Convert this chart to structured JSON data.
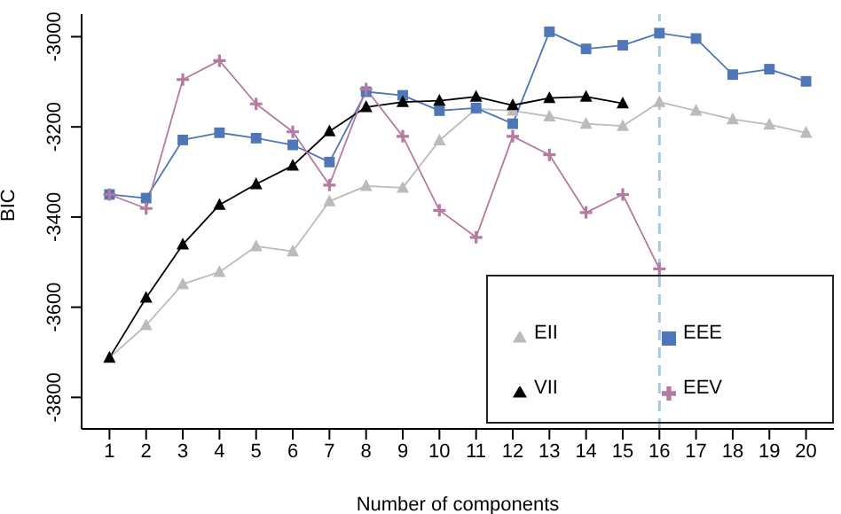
{
  "chart_data": {
    "type": "line",
    "xlabel": "Number of components",
    "ylabel": "BIC",
    "x": [
      1,
      2,
      3,
      4,
      5,
      6,
      7,
      8,
      9,
      10,
      11,
      12,
      13,
      14,
      15,
      16,
      17,
      18,
      19,
      20
    ],
    "series": [
      {
        "name": "EII",
        "color": "#bbbbbb",
        "marker": "triangle",
        "values": [
          -3712,
          -3640,
          -3549,
          -3522,
          -3465,
          -3476,
          -3365,
          -3331,
          -3335,
          -3230,
          -3160,
          -3164,
          -3177,
          -3193,
          -3198,
          -3145,
          -3164,
          -3183,
          -3195,
          -3213
        ]
      },
      {
        "name": "EEE",
        "color": "#4f76b8",
        "marker": "square",
        "values": [
          -3350,
          -3358,
          -3229,
          -3213,
          -3225,
          -3240,
          -3278,
          -3122,
          -3130,
          -3164,
          -3158,
          -3193,
          -2989,
          -3027,
          -3019,
          -2992,
          -3004,
          -3084,
          -3072,
          -3099
        ]
      },
      {
        "name": "VII",
        "color": "#000000",
        "marker": "triangle",
        "values": [
          -3712,
          -3579,
          -3461,
          -3373,
          -3327,
          -3286,
          -3210,
          -3156,
          -3145,
          -3142,
          -3133,
          -3152,
          -3136,
          -3133,
          -3148,
          null,
          null,
          null,
          null,
          null
        ]
      },
      {
        "name": "EEV",
        "color": "#b57aa0",
        "marker": "cross",
        "values": [
          -3350,
          -3381,
          -3095,
          -3053,
          -3149,
          -3211,
          -3329,
          -3116,
          -3221,
          -3385,
          -3445,
          -3221,
          -3262,
          -3390,
          -3350,
          -3515,
          null,
          null,
          null,
          null
        ]
      }
    ],
    "xlim": [
      0.24,
      20.76
    ],
    "xticks": [
      1,
      2,
      3,
      4,
      5,
      6,
      7,
      8,
      9,
      10,
      11,
      12,
      13,
      14,
      15,
      16,
      17,
      18,
      19,
      20
    ],
    "ylim": [
      -3870,
      -2950
    ],
    "yticks": [
      -3800,
      -3600,
      -3400,
      -3200,
      -3000
    ],
    "ref_lines": [
      {
        "axis": "x",
        "value": 16,
        "color": "#a8c8e0",
        "line_style": "dashed"
      }
    ],
    "grid": false,
    "legend": "bottom right"
  }
}
